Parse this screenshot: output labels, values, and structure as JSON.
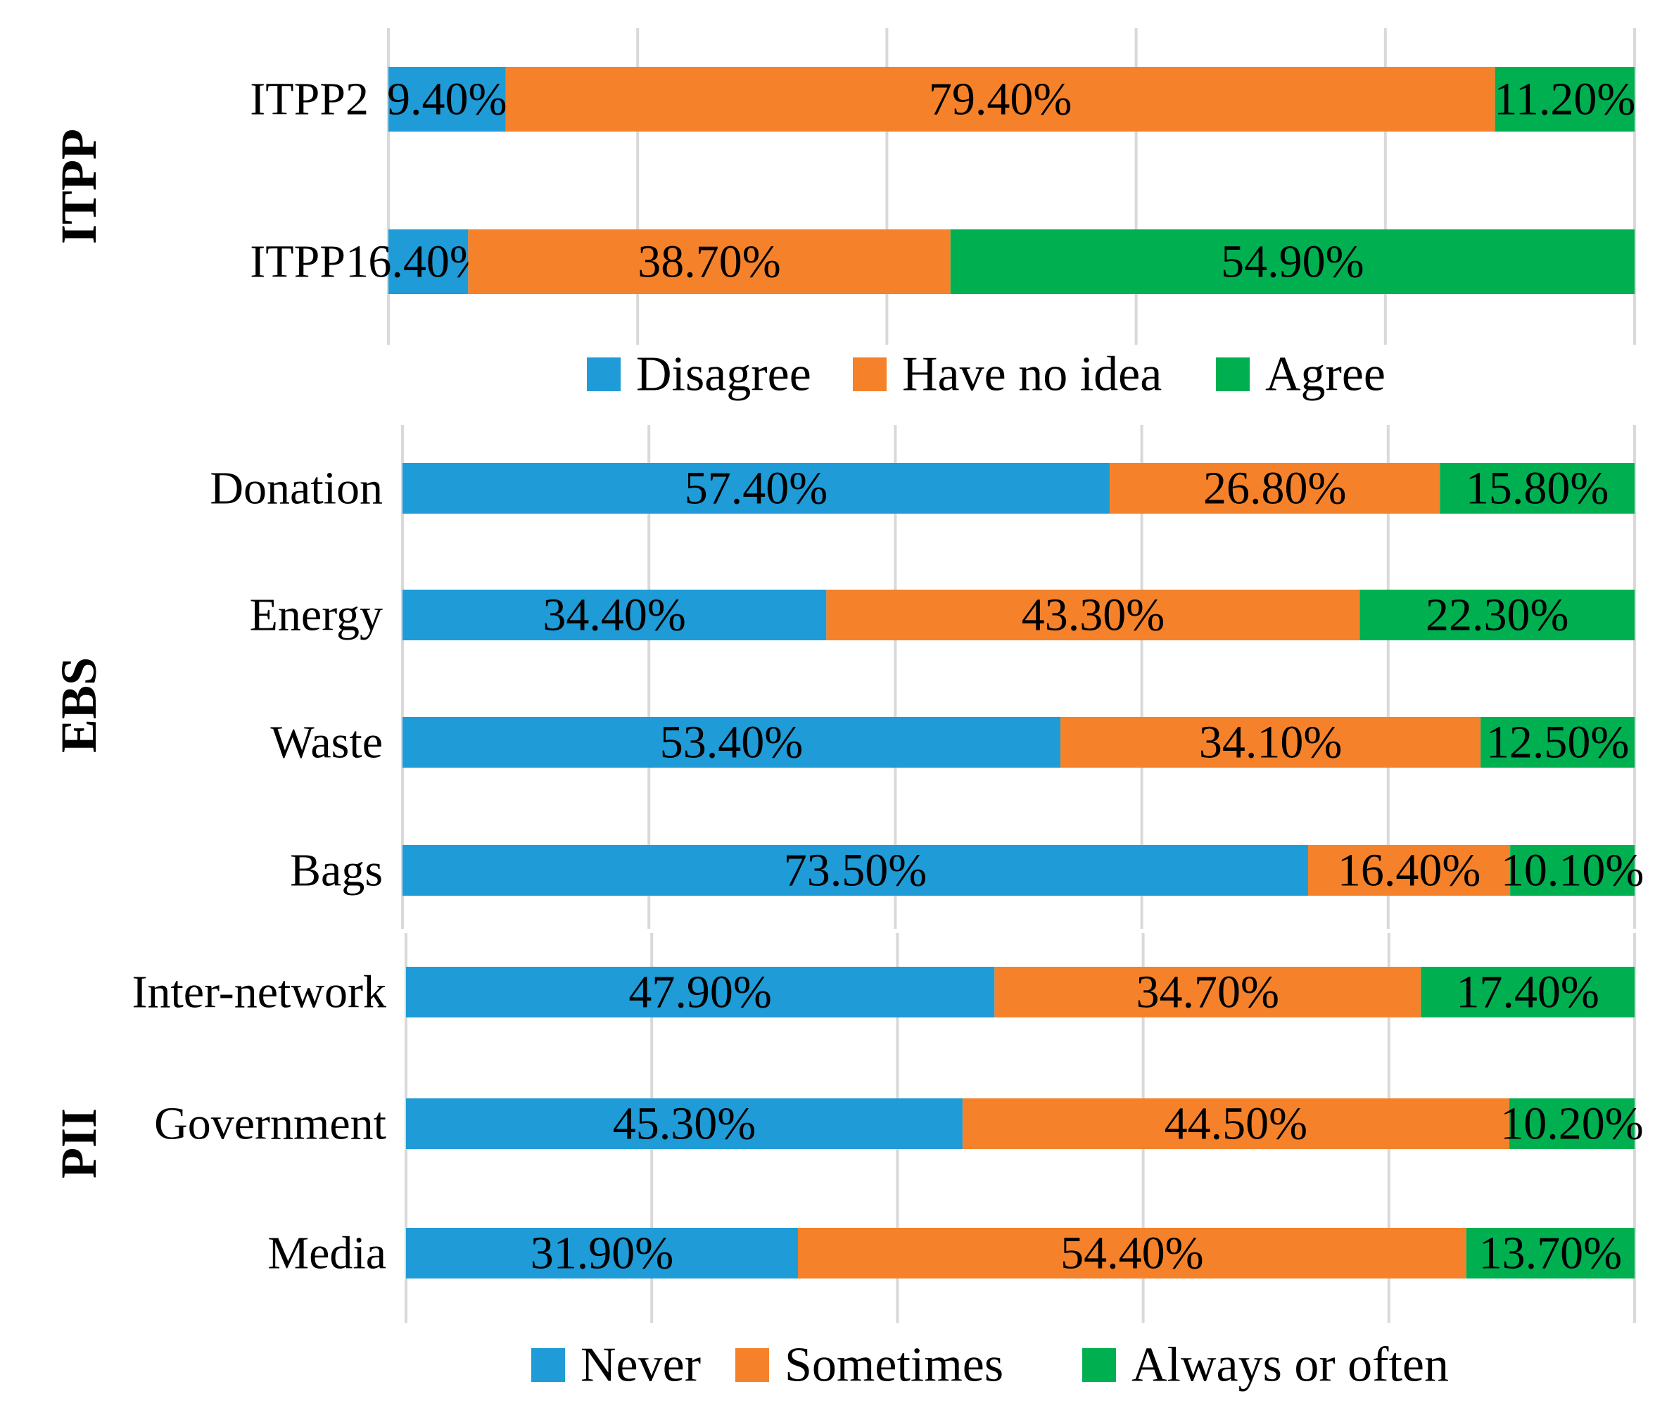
{
  "chart_data": [
    {
      "type": "bar",
      "orientation": "horizontal",
      "stacked": true,
      "group_label": "ITPP",
      "categories": [
        "ITPP2",
        "ITPP1"
      ],
      "series": [
        {
          "name": "Disagree",
          "color": "#1f9bd7",
          "values": [
            9.4,
            6.4
          ],
          "labels": [
            "9.40%",
            "6.40%"
          ]
        },
        {
          "name": "Have no idea",
          "color": "#f5822a",
          "values": [
            79.4,
            38.7
          ],
          "labels": [
            "79.40%",
            "38.70%"
          ]
        },
        {
          "name": "Agree",
          "color": "#00b050",
          "values": [
            11.2,
            54.9
          ],
          "labels": [
            "11.20%",
            "54.90%"
          ]
        }
      ],
      "xlim": [
        0,
        100
      ],
      "grid": true,
      "legend_position": "bottom"
    },
    {
      "type": "bar",
      "orientation": "horizontal",
      "stacked": true,
      "group_label": "EBS",
      "categories": [
        "Donation",
        "Energy",
        "Waste",
        "Bags"
      ],
      "series": [
        {
          "name": "Never",
          "color": "#1f9bd7",
          "values": [
            57.4,
            34.4,
            53.4,
            73.5
          ],
          "labels": [
            "57.40%",
            "34.40%",
            "53.40%",
            "73.50%"
          ]
        },
        {
          "name": "Sometimes",
          "color": "#f5822a",
          "values": [
            26.8,
            43.3,
            34.1,
            16.4
          ],
          "labels": [
            "26.80%",
            "43.30%",
            "34.10%",
            "16.40%"
          ]
        },
        {
          "name": "Always or often",
          "color": "#00b050",
          "values": [
            15.8,
            22.3,
            12.5,
            10.1
          ],
          "labels": [
            "15.80%",
            "22.30%",
            "12.50%",
            "10.10%"
          ]
        }
      ],
      "xlim": [
        0,
        100
      ],
      "grid": true
    },
    {
      "type": "bar",
      "orientation": "horizontal",
      "stacked": true,
      "group_label": "PII",
      "categories": [
        "Inter-network",
        "Government",
        "Media"
      ],
      "series": [
        {
          "name": "Never",
          "color": "#1f9bd7",
          "values": [
            47.9,
            45.3,
            31.9
          ],
          "labels": [
            "47.90%",
            "45.30%",
            "31.90%"
          ]
        },
        {
          "name": "Sometimes",
          "color": "#f5822a",
          "values": [
            34.7,
            44.5,
            54.4
          ],
          "labels": [
            "34.70%",
            "44.50%",
            "54.40%"
          ]
        },
        {
          "name": "Always or often",
          "color": "#00b050",
          "values": [
            17.4,
            10.2,
            13.7
          ],
          "labels": [
            "17.40%",
            "10.20%",
            "13.70%"
          ]
        }
      ],
      "xlim": [
        0,
        100
      ],
      "grid": true,
      "legend_position": "bottom"
    }
  ]
}
